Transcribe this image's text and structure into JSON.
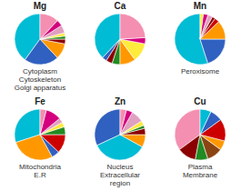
{
  "chart_data": [
    {
      "type": "pie",
      "title": "Mg",
      "values": [
        40,
        22,
        10,
        3,
        2,
        2,
        5,
        4,
        12
      ],
      "colors": [
        "#00bcd4",
        "#3060c0",
        "#ff9800",
        "#8b0000",
        "#228B22",
        "#ffeb3b",
        "#e0a0c0",
        "#d4007f",
        "#f48fb1"
      ],
      "annotations": [
        "Cytoplasm",
        "Cytoskeleton",
        "Golgi apparatus"
      ]
    },
    {
      "type": "pie",
      "title": "Ca",
      "values": [
        38,
        3,
        4,
        5,
        10,
        12,
        4,
        24
      ],
      "colors": [
        "#00bcd4",
        "#3060c0",
        "#8b0000",
        "#228B22",
        "#ff9800",
        "#ffeb3b",
        "#d4007f",
        "#f48fb1"
      ]
    },
    {
      "type": "pie",
      "title": "Mn",
      "values": [
        55,
        20,
        12,
        3,
        2,
        3,
        3,
        2
      ],
      "colors": [
        "#00bcd4",
        "#3060c0",
        "#ff9800",
        "#cc0000",
        "#8b0000",
        "#e0a0c0",
        "#d4007f",
        "#ffeb3b"
      ],
      "annotations": [
        "Peroxisome"
      ]
    },
    {
      "type": "pie",
      "title": "Fe",
      "values": [
        30,
        28,
        5,
        12,
        5,
        3,
        3,
        10,
        4
      ],
      "colors": [
        "#00bcd4",
        "#ff9800",
        "#3060c0",
        "#cc0000",
        "#228B22",
        "#ffeb3b",
        "#e0a0c0",
        "#d4007f",
        "#f48fb1"
      ],
      "annotations": [
        "Mitochondria",
        "E.R"
      ]
    },
    {
      "type": "pie",
      "title": "Zn",
      "values": [
        32,
        35,
        8,
        4,
        2,
        3,
        8,
        4,
        4
      ],
      "colors": [
        "#3060c0",
        "#00bcd4",
        "#ff9800",
        "#8b0000",
        "#228B22",
        "#ffeb3b",
        "#e0a0c0",
        "#d4007f",
        "#f48fb1"
      ],
      "annotations": [
        "Nucleus",
        "Extracellular\nregion"
      ]
    },
    {
      "type": "pie",
      "title": "Cu",
      "values": [
        35,
        12,
        8,
        10,
        6,
        14,
        8,
        7
      ],
      "colors": [
        "#f48fb1",
        "#8b0000",
        "#228B22",
        "#8B4513",
        "#ff9800",
        "#cc0000",
        "#3060c0",
        "#00bcd4"
      ],
      "annotations": [
        "Plasma\nMembrane"
      ]
    }
  ]
}
